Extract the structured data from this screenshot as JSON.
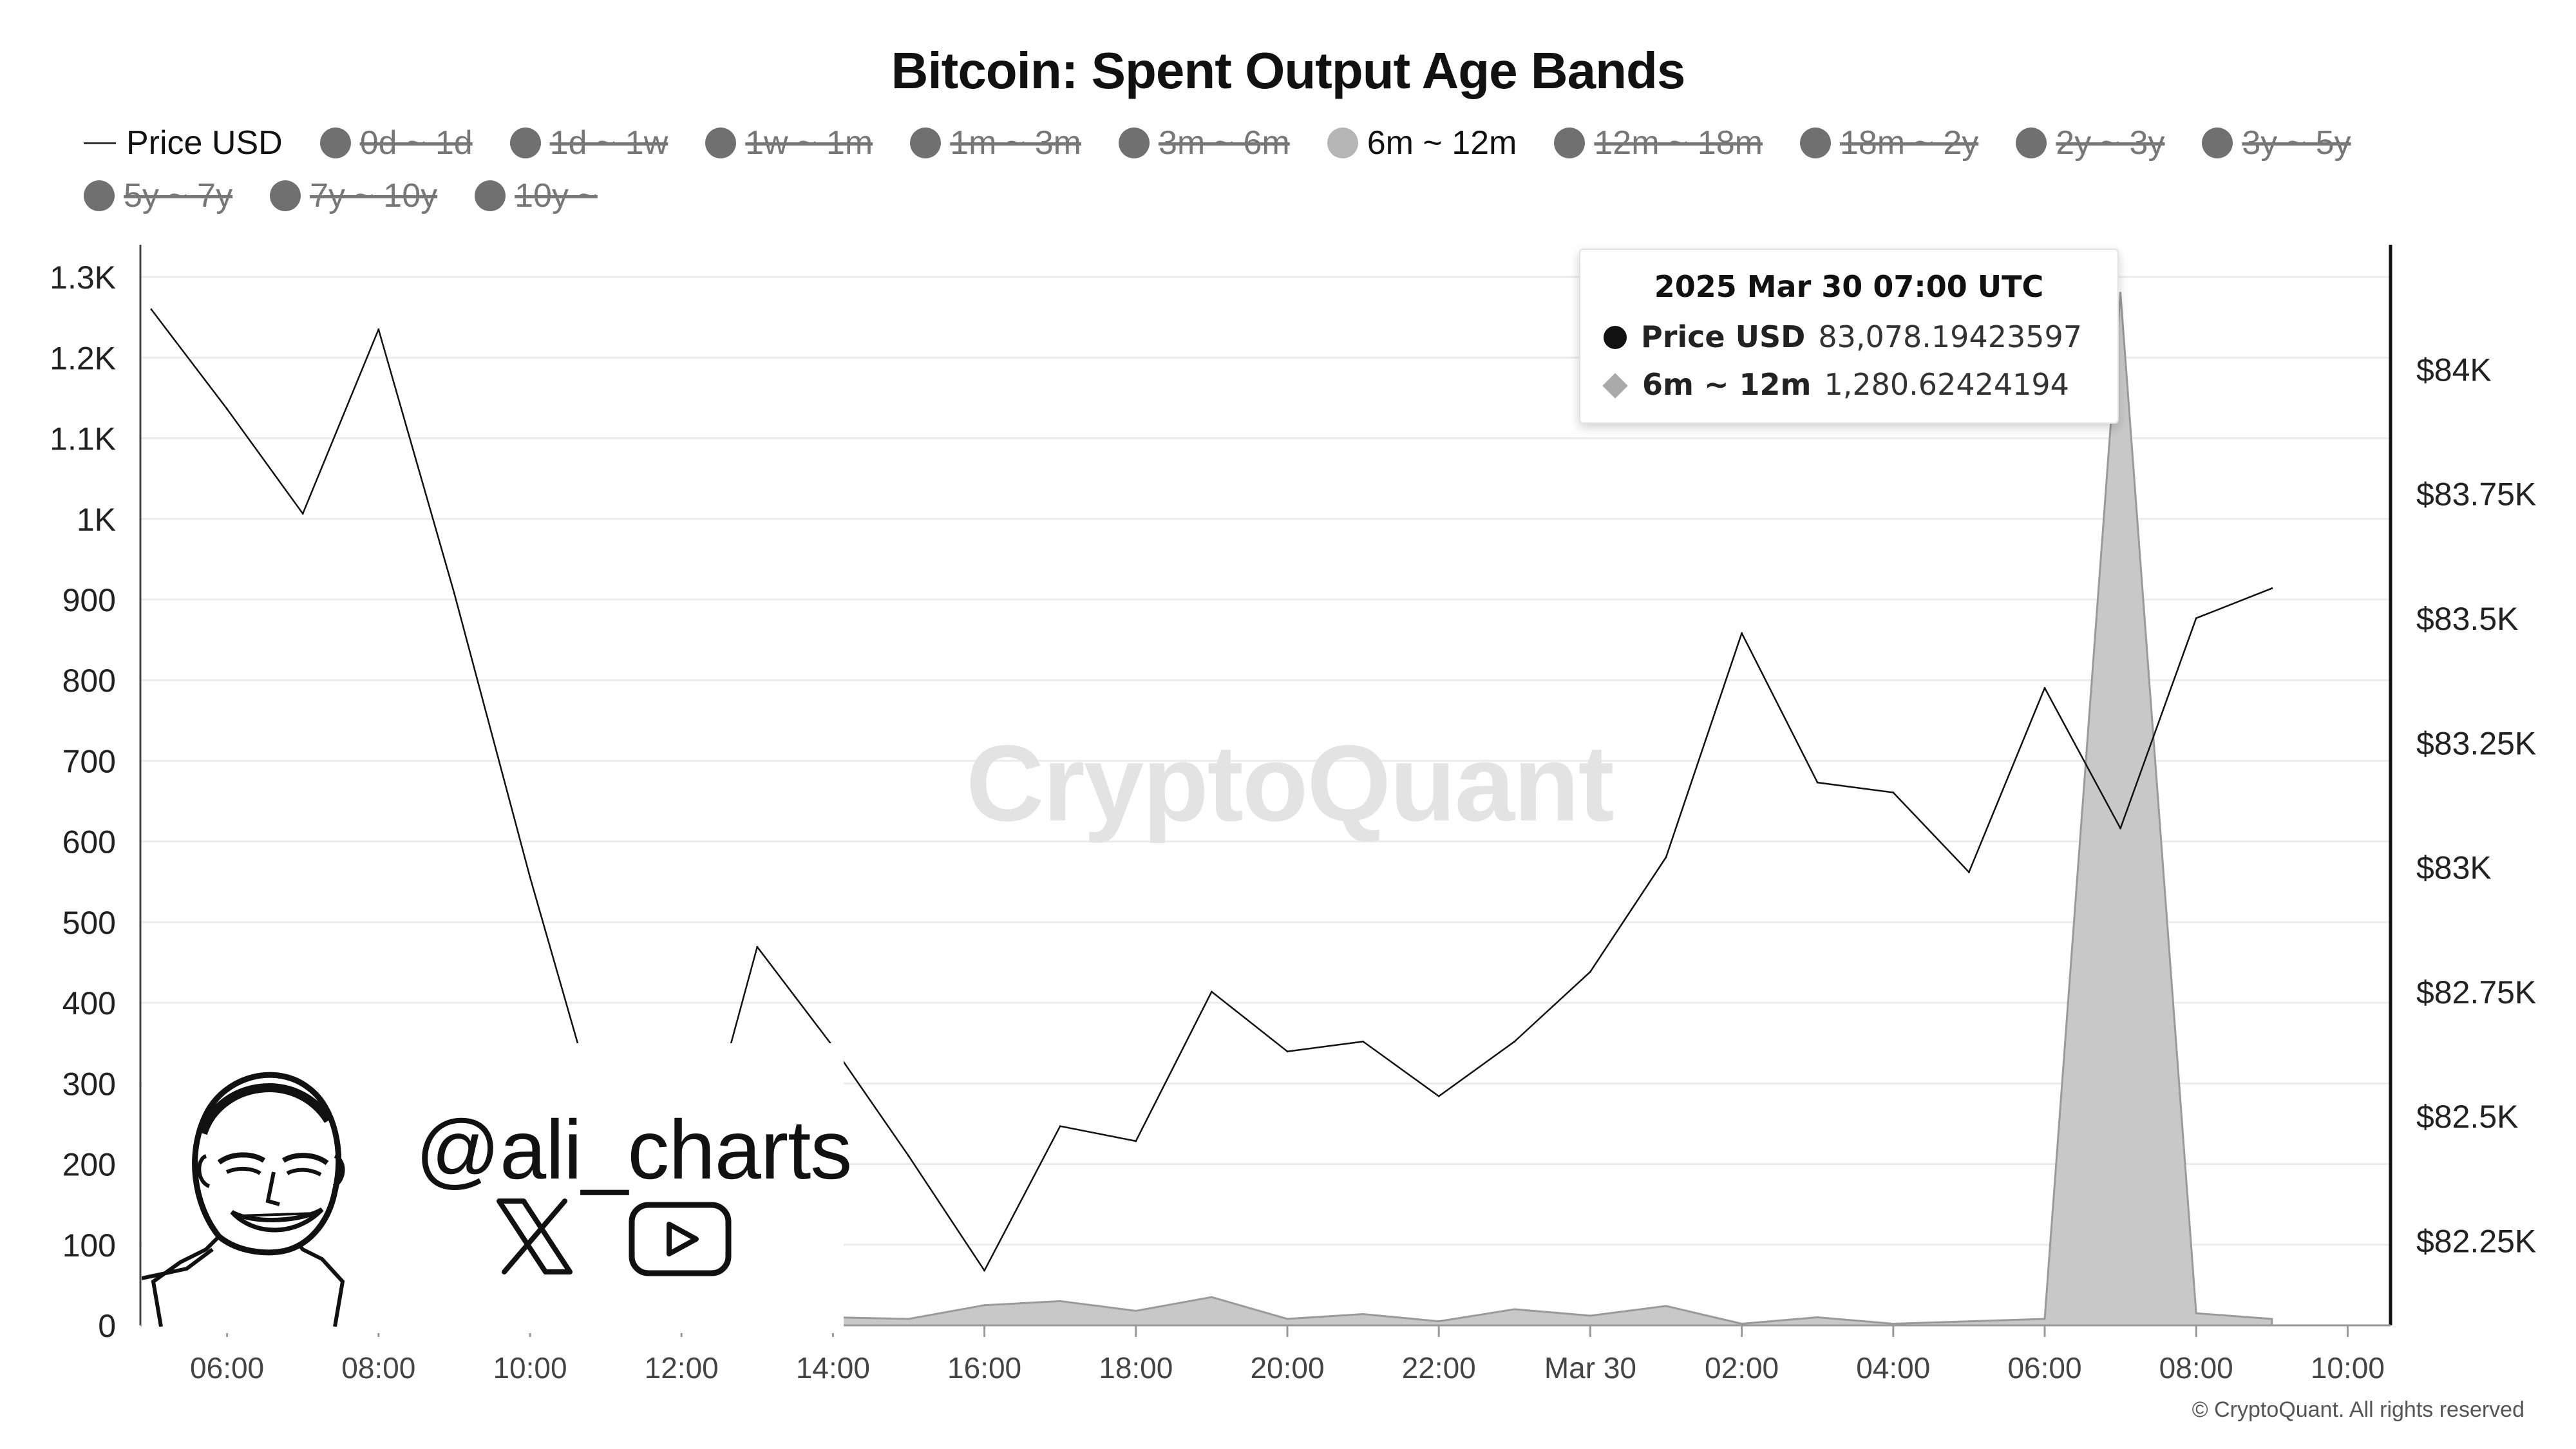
{
  "title": "Bitcoin: Spent Output Age Bands",
  "legend": [
    {
      "label": "Price USD",
      "marker": "line",
      "active": true
    },
    {
      "label": "0d ~ 1d",
      "marker": "dot",
      "active": false
    },
    {
      "label": "1d ~ 1w",
      "marker": "dot",
      "active": false
    },
    {
      "label": "1w ~ 1m",
      "marker": "dot",
      "active": false
    },
    {
      "label": "1m ~ 3m",
      "marker": "dot",
      "active": false
    },
    {
      "label": "3m ~ 6m",
      "marker": "dot",
      "active": false
    },
    {
      "label": "6m ~ 12m",
      "marker": "dot",
      "active": true
    },
    {
      "label": "12m ~ 18m",
      "marker": "dot",
      "active": false
    },
    {
      "label": "18m ~ 2y",
      "marker": "dot",
      "active": false
    },
    {
      "label": "2y ~ 3y",
      "marker": "dot",
      "active": false
    },
    {
      "label": "3y ~ 5y",
      "marker": "dot",
      "active": false
    },
    {
      "label": "5y ~ 7y",
      "marker": "dot",
      "active": false
    },
    {
      "label": "7y ~ 10y",
      "marker": "dot",
      "active": false
    },
    {
      "label": "10y ~",
      "marker": "dot",
      "active": false
    }
  ],
  "tooltip": {
    "title": "2025 Mar 30 07:00 UTC",
    "rows": [
      {
        "label": "Price USD",
        "value": "83,078.19423597",
        "marker": "circle"
      },
      {
        "label": "6m ~ 12m",
        "value": "1,280.62424194",
        "marker": "diamond"
      }
    ]
  },
  "watermark": "CryptoQuant",
  "promo": {
    "handle": "@ali_charts",
    "icons": [
      "x-logo-icon",
      "youtube-play-icon"
    ]
  },
  "copyright": "© CryptoQuant. All rights reserved",
  "colors": {
    "price_line": "#111111",
    "area_fill": "#c8c8c8",
    "area_stroke": "#9a9a9a",
    "grid": "#ececec"
  },
  "chart_data": {
    "type": "line+area",
    "x_tick_labels": [
      "06:00",
      "08:00",
      "10:00",
      "12:00",
      "14:00",
      "16:00",
      "18:00",
      "20:00",
      "22:00",
      "Mar 30",
      "02:00",
      "04:00",
      "06:00",
      "08:00",
      "10:00"
    ],
    "x_hours_start": "2025 Mar 29 05:00",
    "y_left": {
      "ticks": [
        0,
        100,
        200,
        300,
        400,
        500,
        600,
        700,
        800,
        900,
        1000,
        1100,
        1200,
        1300
      ],
      "tick_labels": [
        "0",
        "100",
        "200",
        "300",
        "400",
        "500",
        "600",
        "700",
        "800",
        "900",
        "1K",
        "1.1K",
        "1.2K",
        "1.3K"
      ],
      "range": [
        0,
        1340
      ]
    },
    "y_right": {
      "ticks": [
        82250,
        82500,
        82750,
        83000,
        83250,
        83500,
        83750,
        84000
      ],
      "tick_labels": [
        "$82.25K",
        "$82.5K",
        "$82.75K",
        "$83K",
        "$83.25K",
        "$83.5K",
        "$83.75K",
        "$84K"
      ],
      "range": [
        82080,
        84250
      ]
    },
    "series": [
      {
        "name": "Price USD",
        "axis": "right",
        "type": "line",
        "x": [
          "2025-03-29 05:00",
          "2025-03-29 06:00",
          "2025-03-29 07:00",
          "2025-03-29 08:00",
          "2025-03-29 09:00",
          "2025-03-29 10:00",
          "2025-03-29 11:00",
          "2025-03-29 12:00",
          "2025-03-29 13:00",
          "2025-03-29 14:00",
          "2025-03-29 15:00",
          "2025-03-29 16:00",
          "2025-03-29 17:00",
          "2025-03-29 18:00",
          "2025-03-29 19:00",
          "2025-03-29 20:00",
          "2025-03-29 21:00",
          "2025-03-29 22:00",
          "2025-03-29 23:00",
          "2025-03-30 00:00",
          "2025-03-30 01:00",
          "2025-03-30 02:00",
          "2025-03-30 03:00",
          "2025-03-30 04:00",
          "2025-03-30 05:00",
          "2025-03-30 06:00",
          "2025-03-30 07:00",
          "2025-03-30 08:00",
          "2025-03-30 09:00"
        ],
        "values": [
          84120,
          83920,
          83710,
          84080,
          83550,
          82980,
          82450,
          82280,
          82840,
          82640,
          82420,
          82190,
          82480,
          82450,
          82750,
          82630,
          82650,
          82540,
          82650,
          82790,
          83020,
          83470,
          83170,
          83150,
          82990,
          83360,
          83078,
          83500,
          83560
        ]
      },
      {
        "name": "6m ~ 12m",
        "axis": "left",
        "type": "area",
        "x": [
          "2025-03-29 05:00",
          "2025-03-29 06:00",
          "2025-03-29 07:00",
          "2025-03-29 08:00",
          "2025-03-29 09:00",
          "2025-03-29 10:00",
          "2025-03-29 11:00",
          "2025-03-29 12:00",
          "2025-03-29 13:00",
          "2025-03-29 14:00",
          "2025-03-29 15:00",
          "2025-03-29 16:00",
          "2025-03-29 17:00",
          "2025-03-29 18:00",
          "2025-03-29 19:00",
          "2025-03-29 20:00",
          "2025-03-29 21:00",
          "2025-03-29 22:00",
          "2025-03-29 23:00",
          "2025-03-30 00:00",
          "2025-03-30 01:00",
          "2025-03-30 02:00",
          "2025-03-30 03:00",
          "2025-03-30 04:00",
          "2025-03-30 05:00",
          "2025-03-30 06:00",
          "2025-03-30 07:00",
          "2025-03-30 08:00",
          "2025-03-30 09:00"
        ],
        "values": [
          12,
          10,
          8,
          10,
          12,
          10,
          9,
          11,
          10,
          10,
          8,
          25,
          30,
          18,
          35,
          8,
          14,
          5,
          20,
          12,
          24,
          2,
          10,
          2,
          5,
          8,
          1280.62,
          15,
          8
        ]
      }
    ]
  }
}
